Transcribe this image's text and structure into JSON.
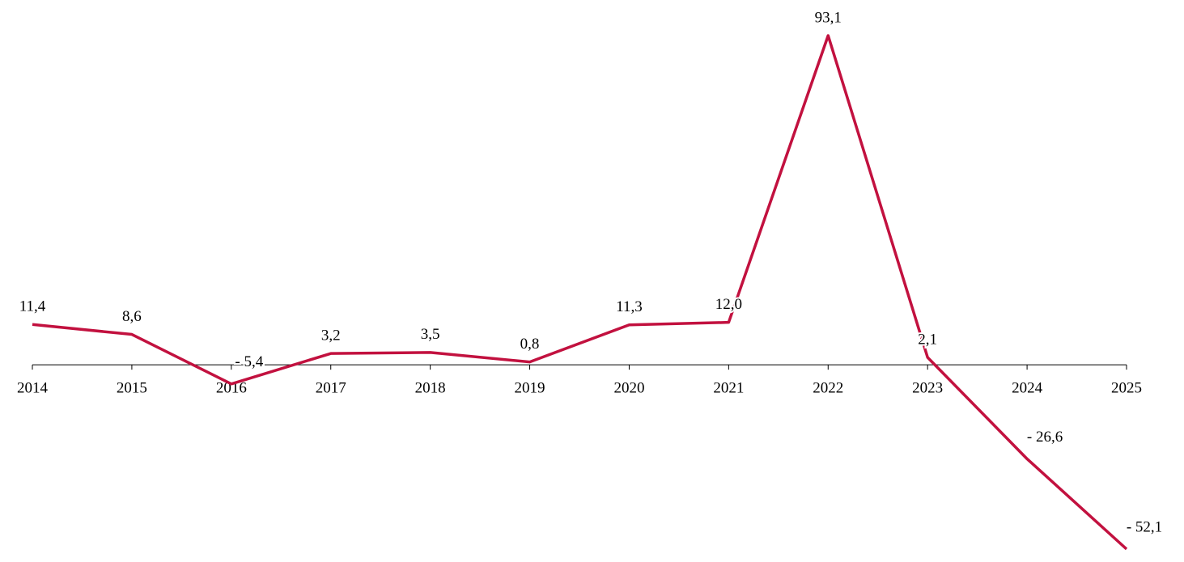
{
  "chart_data": {
    "type": "line",
    "categories": [
      "2014",
      "2015",
      "2016",
      "2017",
      "2018",
      "2019",
      "2020",
      "2021",
      "2022",
      "2023",
      "2024",
      "2025"
    ],
    "values": [
      11.4,
      8.6,
      -5.4,
      3.2,
      3.5,
      0.8,
      11.3,
      12.0,
      93.1,
      2.1,
      -26.6,
      -52.1
    ],
    "value_labels": [
      "11,4",
      "8,6",
      "- 5,4",
      "3,2",
      "3,5",
      "0,8",
      "11,3",
      "12,0",
      "93,1",
      "2,1",
      "- 26,6",
      "- 52,1"
    ],
    "color": "#c2113f"
  }
}
